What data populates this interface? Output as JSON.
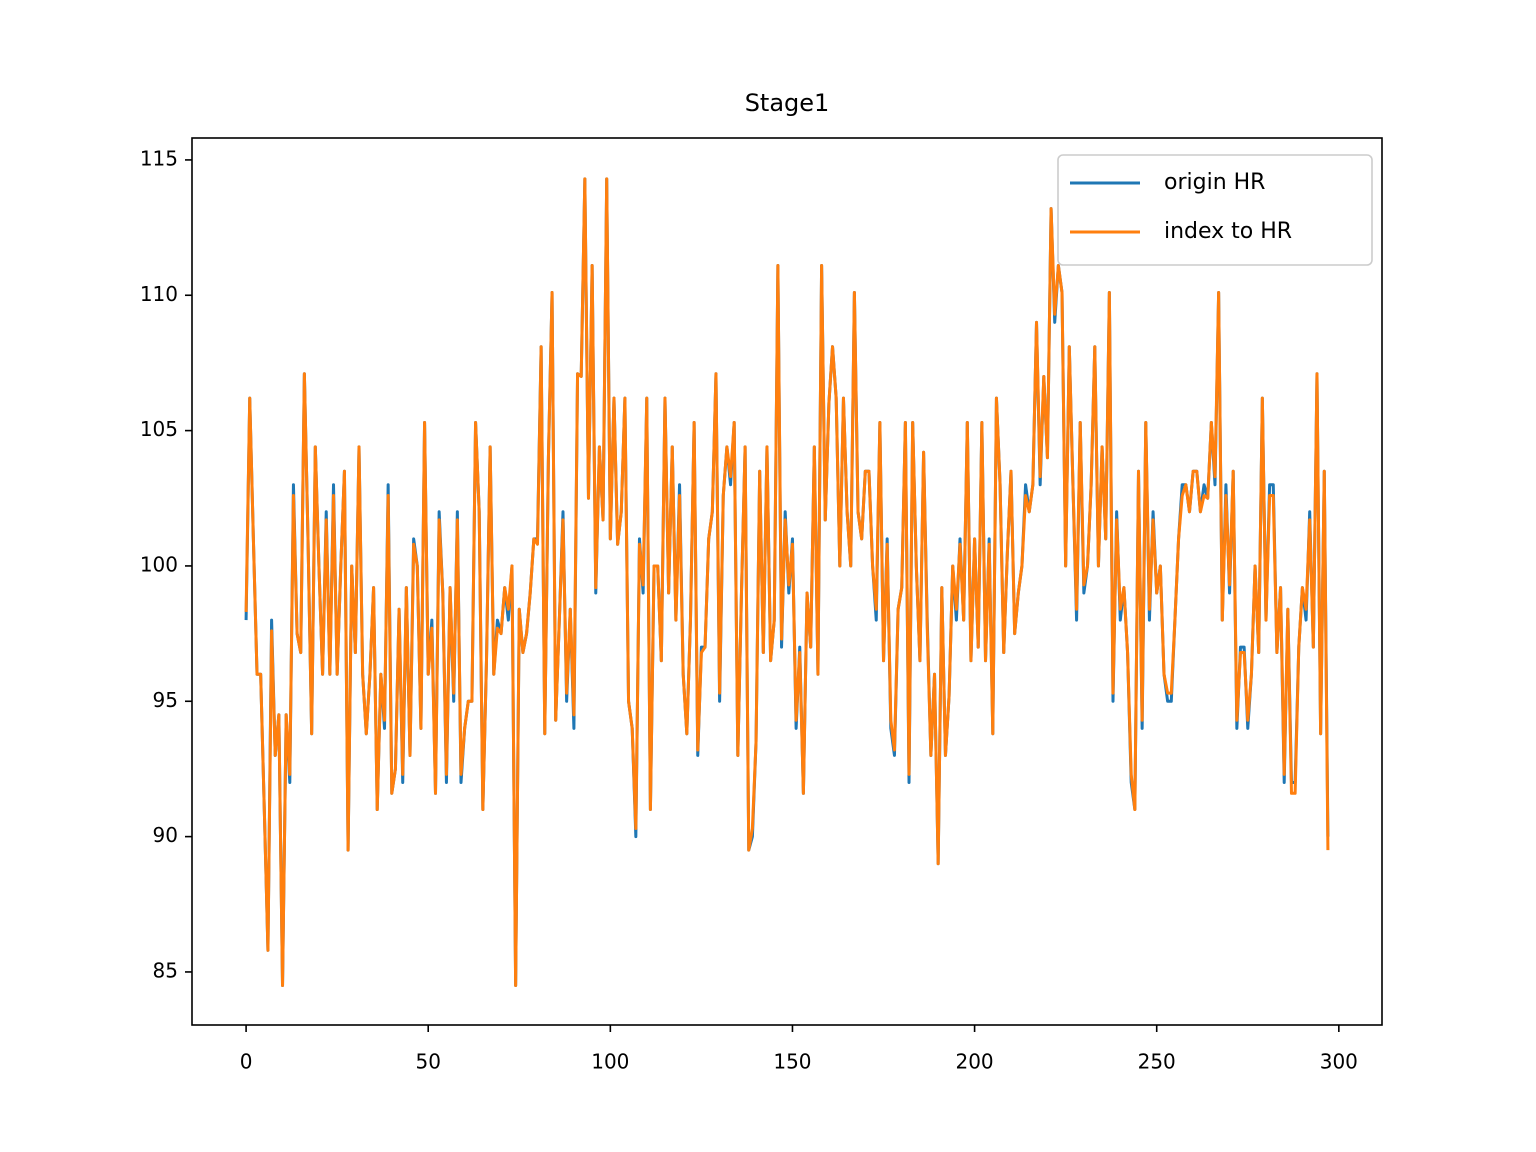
{
  "chart_data": {
    "type": "line",
    "title": "Stage1",
    "x": [
      0,
      1,
      2,
      3,
      4,
      5,
      6,
      7,
      8,
      9,
      10,
      11,
      12,
      13,
      14,
      15,
      16,
      17,
      18,
      19,
      20,
      21,
      22,
      23,
      24,
      25,
      26,
      27,
      28,
      29,
      30,
      31,
      32,
      33,
      34,
      35,
      36,
      37,
      38,
      39,
      40,
      41,
      42,
      43,
      44,
      45,
      46,
      47,
      48,
      49,
      50,
      51,
      52,
      53,
      54,
      55,
      56,
      57,
      58,
      59,
      60,
      61,
      62,
      63,
      64,
      65,
      66,
      67,
      68,
      69,
      70,
      71,
      72,
      73,
      74,
      75,
      76,
      77,
      78,
      79,
      80,
      81,
      82,
      83,
      84,
      85,
      86,
      87,
      88,
      89,
      90,
      91,
      92,
      93,
      94,
      95,
      96,
      97,
      98,
      99,
      100,
      101,
      102,
      103,
      104,
      105,
      106,
      107,
      108,
      109,
      110,
      111,
      112,
      113,
      114,
      115,
      116,
      117,
      118,
      119,
      120,
      121,
      122,
      123,
      124,
      125,
      126,
      127,
      128,
      129,
      130,
      131,
      132,
      133,
      134,
      135,
      136,
      137,
      138,
      139,
      140,
      141,
      142,
      143,
      144,
      145,
      146,
      147,
      148,
      149,
      150,
      151,
      152,
      153,
      154,
      155,
      156,
      157,
      158,
      159,
      160,
      161,
      162,
      163,
      164,
      165,
      166,
      167,
      168,
      169,
      170,
      171,
      172,
      173,
      174,
      175,
      176,
      177,
      178,
      179,
      180,
      181,
      182,
      183,
      184,
      185,
      186,
      187,
      188,
      189,
      190,
      191,
      192,
      193,
      194,
      195,
      196,
      197,
      198,
      199,
      200,
      201,
      202,
      203,
      204,
      205,
      206,
      207,
      208,
      209,
      210,
      211,
      212,
      213,
      214,
      215,
      216,
      217,
      218,
      219,
      220,
      221,
      222,
      223,
      224,
      225,
      226,
      227,
      228,
      229,
      230,
      231,
      232,
      233,
      234,
      235,
      236,
      237,
      238,
      239,
      240,
      241,
      242,
      243,
      244,
      245,
      246,
      247,
      248,
      249,
      250,
      251,
      252,
      253,
      254,
      255,
      256,
      257,
      258,
      259,
      260,
      261,
      262,
      263,
      264,
      265,
      266,
      267,
      268,
      269,
      270,
      271,
      272,
      273,
      274,
      275,
      276,
      277,
      278,
      279,
      280,
      281,
      282,
      283,
      284,
      285,
      286,
      287,
      288,
      289,
      290,
      291,
      292,
      293,
      294,
      295,
      296,
      297
    ],
    "series": [
      {
        "name": "origin HR",
        "color": "#1f77b4",
        "values": [
          98,
          106.2,
          101,
          96,
          96,
          91,
          85.8,
          98,
          93,
          94.5,
          84.5,
          94.5,
          92,
          103,
          97.5,
          96.8,
          107.1,
          101,
          93.8,
          104.4,
          100,
          96,
          102,
          96,
          103,
          96,
          100,
          103.5,
          89.5,
          100,
          96.8,
          104.4,
          96,
          93.8,
          96,
          99.2,
          91,
          96,
          94,
          103,
          91.6,
          92.5,
          98.4,
          92,
          99.2,
          93,
          101,
          100,
          94,
          105.3,
          96,
          98,
          91.6,
          102,
          99,
          92,
          99.2,
          95,
          102,
          92,
          94,
          95,
          95,
          105.3,
          102,
          91,
          96.5,
          104.4,
          96,
          98,
          97.5,
          99.2,
          98,
          100,
          84.5,
          98.4,
          96.8,
          97.5,
          99,
          101,
          101,
          108.1,
          93.8,
          104,
          110.1,
          94.3,
          98,
          102,
          95,
          98.4,
          94,
          107.1,
          107,
          114.3,
          102.5,
          111.1,
          99,
          104.4,
          101.7,
          114.3,
          101,
          106.2,
          100.8,
          102,
          106.2,
          95,
          94,
          90,
          101,
          99,
          106.2,
          91,
          100,
          100,
          96.5,
          106.2,
          99,
          104.4,
          98,
          103,
          96,
          93.8,
          98,
          105.3,
          93,
          97,
          97,
          101,
          102,
          107.1,
          95,
          102.6,
          104.4,
          103,
          105.3,
          93,
          99,
          104.4,
          89.5,
          90,
          93.5,
          103.5,
          96.8,
          104.4,
          96.5,
          98,
          111.1,
          97,
          102,
          99,
          101,
          94,
          97,
          91.6,
          99,
          97,
          104.4,
          96,
          111.1,
          101.7,
          106,
          108.1,
          106.2,
          100,
          106.2,
          102,
          100,
          110.1,
          102,
          101,
          103.5,
          103.5,
          100,
          98,
          105.3,
          96.5,
          101,
          94,
          93,
          98.4,
          99.2,
          105.3,
          92,
          105.3,
          100,
          96.5,
          104.2,
          98,
          93,
          96,
          89,
          99.2,
          93,
          95.2,
          100,
          98,
          101,
          98,
          105.3,
          96.5,
          101,
          97,
          105.3,
          96.5,
          101,
          93.8,
          106.2,
          103,
          96.8,
          100.5,
          103.5,
          97.5,
          99,
          100,
          103,
          102,
          103,
          109,
          103,
          107,
          104,
          113.2,
          109,
          111.1,
          110.1,
          100,
          108.1,
          103,
          98,
          105.3,
          99,
          100,
          103,
          108.1,
          100,
          104.4,
          101,
          110.1,
          95,
          102,
          98,
          99.2,
          96.8,
          92,
          91,
          103.5,
          94,
          105.3,
          98,
          102,
          99,
          100,
          96,
          95,
          95,
          98,
          101,
          103,
          103,
          102,
          103.5,
          103.5,
          102,
          103,
          102.5,
          105.3,
          103,
          110.1,
          98,
          103,
          99,
          103.5,
          94,
          97,
          97,
          94,
          96,
          100,
          96.8,
          106.2,
          98,
          103,
          103,
          96.8,
          99.2,
          92,
          98.4,
          92,
          92,
          97,
          99.2,
          98,
          102,
          97,
          107.1,
          93.8,
          103.5,
          90
        ]
      },
      {
        "name": "index to HR",
        "color": "#ff7f0e",
        "values": [
          98.3,
          106.2,
          101,
          96,
          96,
          91,
          85.8,
          97.6,
          93,
          94.5,
          84.5,
          94.5,
          92.3,
          102.6,
          97.5,
          96.8,
          107.1,
          101,
          93.8,
          104.4,
          100,
          96,
          101.7,
          96,
          102.6,
          96,
          100,
          103.5,
          89.5,
          100,
          96.8,
          104.4,
          96,
          93.8,
          96,
          99.2,
          91,
          96,
          94.3,
          102.6,
          91.6,
          92.5,
          98.4,
          92.3,
          99.2,
          93,
          100.8,
          100,
          94,
          105.3,
          96,
          97.7,
          91.6,
          101.7,
          99,
          92.3,
          99.2,
          95.3,
          101.7,
          92.3,
          94,
          95,
          95,
          105.3,
          102,
          91,
          96.5,
          104.4,
          96,
          97.7,
          97.5,
          99.2,
          98.4,
          100,
          84.5,
          98.4,
          96.8,
          97.5,
          99,
          101,
          100.8,
          108.1,
          93.8,
          104,
          110.1,
          94.3,
          98,
          101.7,
          95.3,
          98.4,
          94.5,
          107.1,
          107,
          114.3,
          102.5,
          111.1,
          99.2,
          104.4,
          101.7,
          114.3,
          101,
          106.2,
          100.8,
          102,
          106.2,
          95,
          94,
          90.3,
          100.8,
          99.3,
          106.2,
          91,
          100,
          100,
          96.5,
          106.2,
          99,
          104.4,
          98,
          102.6,
          96,
          93.8,
          98,
          105.3,
          93.2,
          96.8,
          97,
          101,
          102,
          107.1,
          95.3,
          102.6,
          104.4,
          103.3,
          105.3,
          93,
          99,
          104.4,
          89.5,
          90.3,
          93.5,
          103.5,
          96.8,
          104.4,
          96.5,
          98,
          111.1,
          97.3,
          101.7,
          99.3,
          100.8,
          94.3,
          96.8,
          91.6,
          99,
          97,
          104.4,
          96,
          111.1,
          101.7,
          106,
          108.1,
          106.2,
          100,
          106.2,
          102,
          100,
          110.1,
          102,
          101,
          103.5,
          103.5,
          100,
          98.4,
          105.3,
          96.5,
          100.8,
          94.3,
          93.2,
          98.4,
          99.2,
          105.3,
          92.3,
          105.3,
          100,
          96.5,
          104.2,
          97.7,
          93,
          96,
          89,
          99.2,
          93,
          95.2,
          100,
          98.4,
          100.8,
          98,
          105.3,
          96.5,
          101,
          97,
          105.3,
          96.5,
          100.8,
          93.8,
          106.2,
          103,
          96.8,
          100.5,
          103.5,
          97.5,
          99,
          100,
          102.6,
          102,
          103,
          109,
          103.3,
          107,
          104,
          113.2,
          109.3,
          111.1,
          110.1,
          100,
          108.1,
          103,
          98.4,
          105.3,
          99.3,
          100,
          103,
          108.1,
          100,
          104.4,
          101,
          110.1,
          95.3,
          101.7,
          98.4,
          99.2,
          96.8,
          92.3,
          91,
          103.5,
          94.3,
          105.3,
          98.4,
          101.7,
          99,
          100,
          96,
          95.3,
          95.3,
          98,
          101,
          102.6,
          103,
          102,
          103.5,
          103.5,
          102,
          102.6,
          102.5,
          105.3,
          103.3,
          110.1,
          98,
          102.6,
          99.3,
          103.5,
          94.3,
          96.8,
          96.8,
          94.3,
          96,
          100,
          96.8,
          106.2,
          98,
          102.6,
          102.6,
          96.8,
          99.2,
          92.3,
          98.4,
          91.6,
          91.6,
          97,
          99.2,
          98.4,
          101.7,
          97,
          107.1,
          93.8,
          103.5,
          89.5
        ]
      }
    ],
    "xlim": [
      -14.85,
      311.85
    ],
    "xticks": [
      0,
      50,
      100,
      150,
      200,
      250,
      300
    ],
    "ylim": [
      83.04,
      115.81
    ],
    "yticks": [
      85,
      90,
      95,
      100,
      105,
      110,
      115
    ],
    "legend": "upper right"
  }
}
